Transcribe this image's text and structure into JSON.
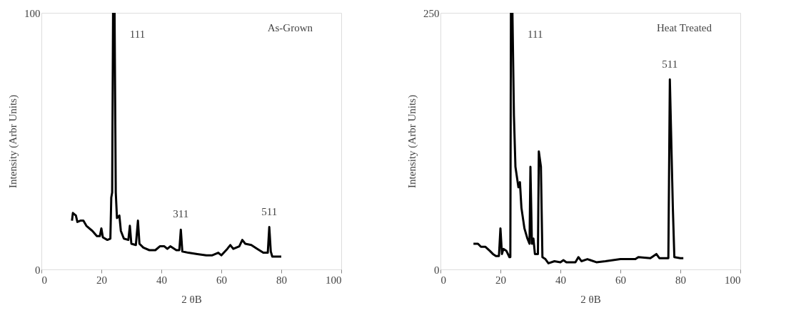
{
  "chart_data": [
    {
      "type": "line",
      "xlabel": "2 θB",
      "ylabel": "Intensity (Arbr Units)",
      "xlim": [
        0,
        100
      ],
      "xticks": [
        0,
        20,
        40,
        60,
        80,
        100
      ],
      "ylim": [
        0,
        100
      ],
      "yticks": [
        0,
        100
      ],
      "grid": false,
      "marker": "none",
      "line_style": "solid",
      "annotations": [
        {
          "text": "111",
          "x": 24.4,
          "y": 100
        },
        {
          "text": "311",
          "x": 46.5,
          "y": 15.5
        },
        {
          "text": "511",
          "x": 76,
          "y": 16.5
        },
        "As-Grown"
      ],
      "series": [
        {
          "color": "#000000",
          "x": [
            10.2,
            10.5,
            11.5,
            12,
            13,
            14,
            15,
            17,
            18.5,
            19.5,
            20,
            20.5,
            22,
            23,
            23.3,
            23.6,
            23.9,
            24.4,
            24.8,
            25.2,
            26,
            26.5,
            27.5,
            29,
            29.5,
            30,
            31.5,
            32.2,
            32.7,
            34,
            36,
            38,
            39.5,
            41,
            42,
            43,
            45,
            46,
            46.5,
            47,
            49,
            52,
            55,
            57,
            59,
            60,
            62,
            63,
            64,
            66,
            67,
            68,
            70,
            72,
            74,
            75.5,
            76,
            76.5,
            77,
            79,
            80
          ],
          "values": [
            19,
            22,
            21,
            18.5,
            19,
            19,
            17,
            15,
            13,
            13,
            16,
            12.5,
            11.5,
            12,
            28,
            30,
            100,
            100,
            30,
            20,
            21,
            15,
            12,
            11.5,
            17,
            10,
            9.5,
            19,
            10,
            8.5,
            7.5,
            7.5,
            9,
            9,
            8,
            9,
            7.5,
            7.5,
            15.5,
            7,
            6.5,
            6,
            5.5,
            5.5,
            6.5,
            5.5,
            8,
            9.5,
            8,
            9,
            11.5,
            10,
            9.5,
            8,
            6.5,
            6.5,
            16.5,
            7,
            5,
            5,
            5
          ]
        }
      ]
    },
    {
      "type": "line",
      "xlabel": "2 θB",
      "ylabel": "Intensity (Arbr Units)",
      "xlim": [
        0,
        100
      ],
      "xticks": [
        0,
        20,
        40,
        60,
        80,
        100
      ],
      "ylim": [
        0,
        250
      ],
      "yticks": [
        0,
        250
      ],
      "grid": false,
      "marker": "none",
      "line_style": "solid",
      "annotations": [
        {
          "text": "111",
          "x": 24,
          "y": 250
        },
        {
          "text": "511",
          "x": 76.5,
          "y": 185
        },
        "Heat Treated"
      ],
      "series": [
        {
          "color": "#000000",
          "x": [
            11,
            12.5,
            13.5,
            15,
            16.5,
            17.5,
            18.5,
            19.5,
            20,
            20.5,
            21,
            22,
            23,
            23.3,
            23.5,
            24,
            24.5,
            25,
            26,
            26.5,
            27,
            28,
            29,
            29.7,
            30,
            30.5,
            31,
            31.5,
            32.5,
            32.8,
            33.5,
            34,
            35,
            36,
            38,
            40,
            41,
            42,
            45,
            46,
            47,
            49,
            50,
            52,
            55,
            60,
            65,
            66,
            70,
            72,
            73,
            76,
            76.5,
            77.5,
            78,
            80,
            81
          ],
          "values": [
            25,
            25,
            22,
            22,
            18,
            15,
            13,
            13,
            40,
            15,
            20,
            18,
            12,
            12,
            250,
            250,
            150,
            100,
            80,
            85,
            60,
            40,
            30,
            25,
            100,
            25,
            30,
            15,
            15,
            115,
            100,
            12,
            10,
            6,
            8,
            7,
            9,
            7,
            7,
            12,
            8,
            10,
            9,
            7,
            8,
            10,
            10,
            12,
            11,
            15,
            11,
            11,
            185,
            60,
            12,
            11,
            11
          ]
        }
      ]
    }
  ]
}
